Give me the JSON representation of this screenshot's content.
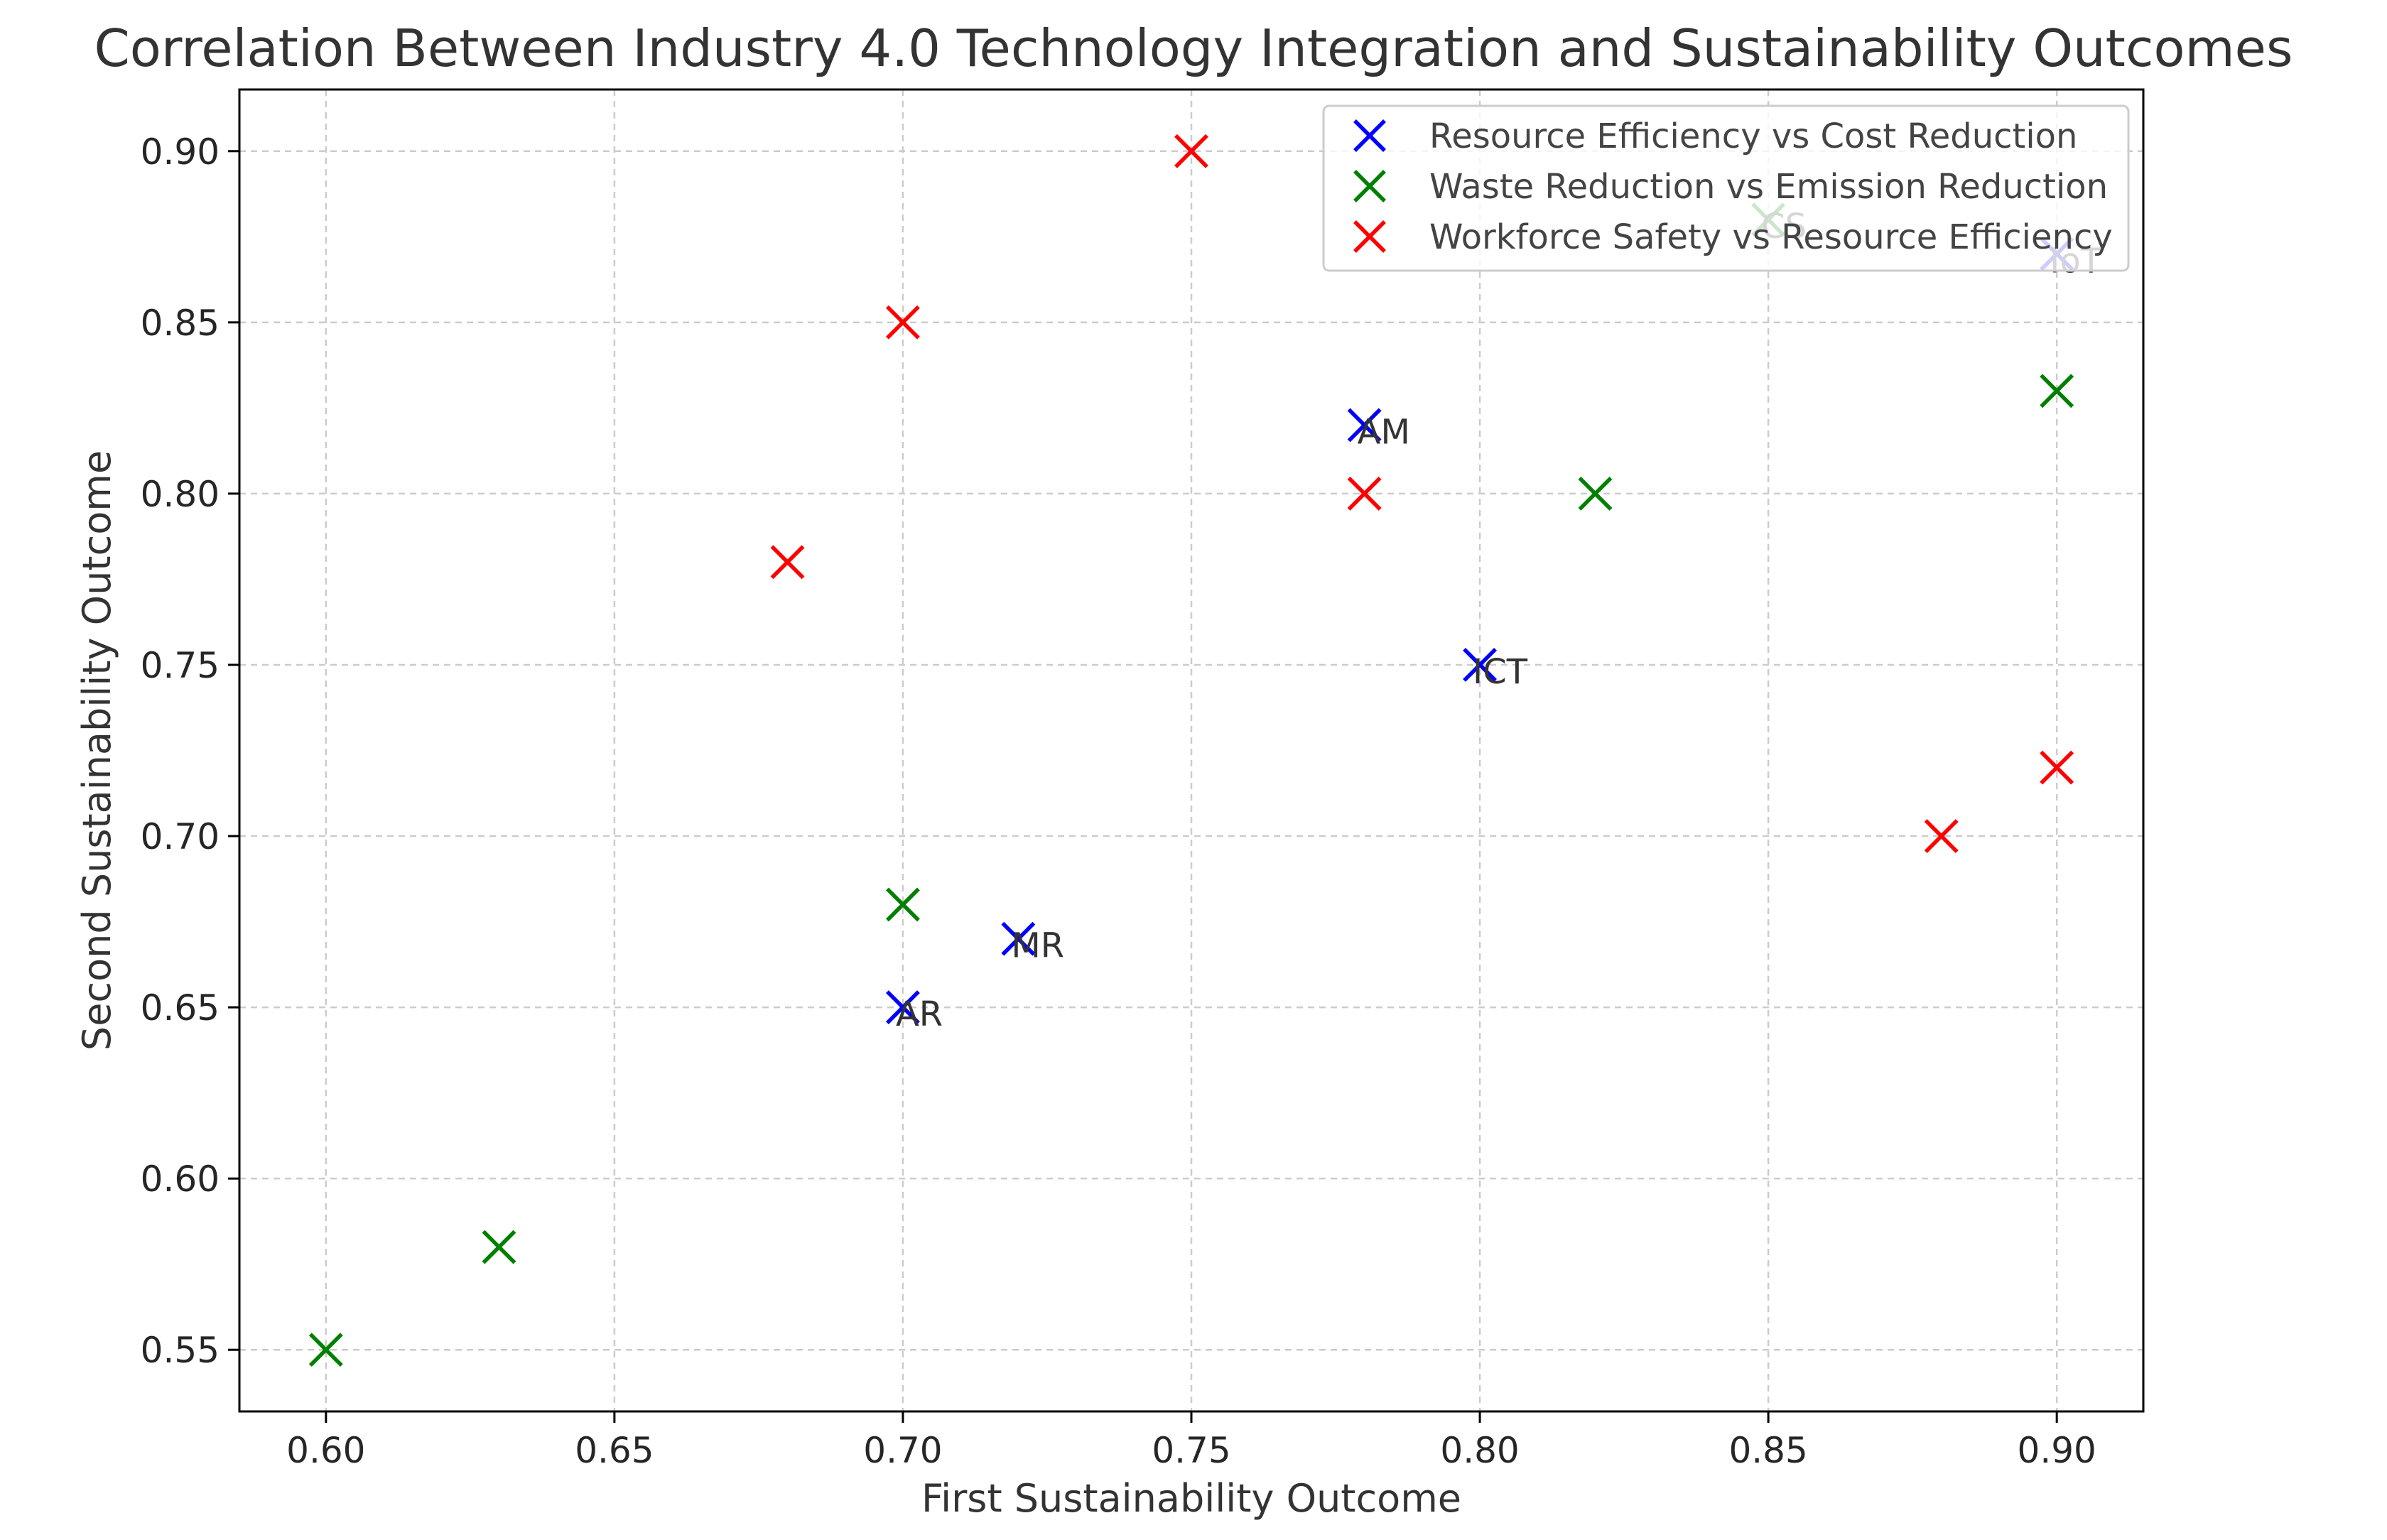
{
  "chart_data": {
    "type": "scatter",
    "title": "Correlation Between Industry 4.0 Technology Integration and Sustainability Outcomes",
    "xlabel": "First Sustainability Outcome",
    "ylabel": "Second Sustainability Outcome",
    "xlim": [
      0.585,
      0.915
    ],
    "ylim": [
      0.532,
      0.918
    ],
    "xticks": [
      0.6,
      0.65,
      0.7,
      0.75,
      0.8,
      0.85,
      0.9
    ],
    "xtick_labels": [
      "0.60",
      "0.65",
      "0.70",
      "0.75",
      "0.80",
      "0.85",
      "0.90"
    ],
    "yticks": [
      0.55,
      0.6,
      0.65,
      0.7,
      0.75,
      0.8,
      0.85,
      0.9
    ],
    "ytick_labels": [
      "0.55",
      "0.60",
      "0.65",
      "0.70",
      "0.75",
      "0.80",
      "0.85",
      "0.90"
    ],
    "grid": true,
    "legend_position": "top-right",
    "marker": "x",
    "series": [
      {
        "name": "Resource Efficiency vs Cost Reduction",
        "color": "#0000ff",
        "points": [
          {
            "x": 0.7,
            "y": 0.65,
            "label": "AR"
          },
          {
            "x": 0.72,
            "y": 0.67,
            "label": "MR"
          },
          {
            "x": 0.78,
            "y": 0.82,
            "label": "AM"
          },
          {
            "x": 0.8,
            "y": 0.75,
            "label": "ICT"
          },
          {
            "x": 0.9,
            "y": 0.87,
            "label": "IoT"
          }
        ]
      },
      {
        "name": "Waste Reduction vs Emission Reduction",
        "color": "#008000",
        "points": [
          {
            "x": 0.6,
            "y": 0.55,
            "label": ""
          },
          {
            "x": 0.63,
            "y": 0.58,
            "label": ""
          },
          {
            "x": 0.7,
            "y": 0.68,
            "label": ""
          },
          {
            "x": 0.82,
            "y": 0.8,
            "label": ""
          },
          {
            "x": 0.85,
            "y": 0.88,
            "label": "CS"
          },
          {
            "x": 0.9,
            "y": 0.83,
            "label": ""
          }
        ]
      },
      {
        "name": "Workforce Safety vs Resource Efficiency",
        "color": "#ff0000",
        "points": [
          {
            "x": 0.68,
            "y": 0.78,
            "label": ""
          },
          {
            "x": 0.7,
            "y": 0.85,
            "label": ""
          },
          {
            "x": 0.75,
            "y": 0.9,
            "label": ""
          },
          {
            "x": 0.78,
            "y": 0.8,
            "label": ""
          },
          {
            "x": 0.88,
            "y": 0.7,
            "label": ""
          },
          {
            "x": 0.9,
            "y": 0.72,
            "label": ""
          }
        ]
      }
    ]
  }
}
